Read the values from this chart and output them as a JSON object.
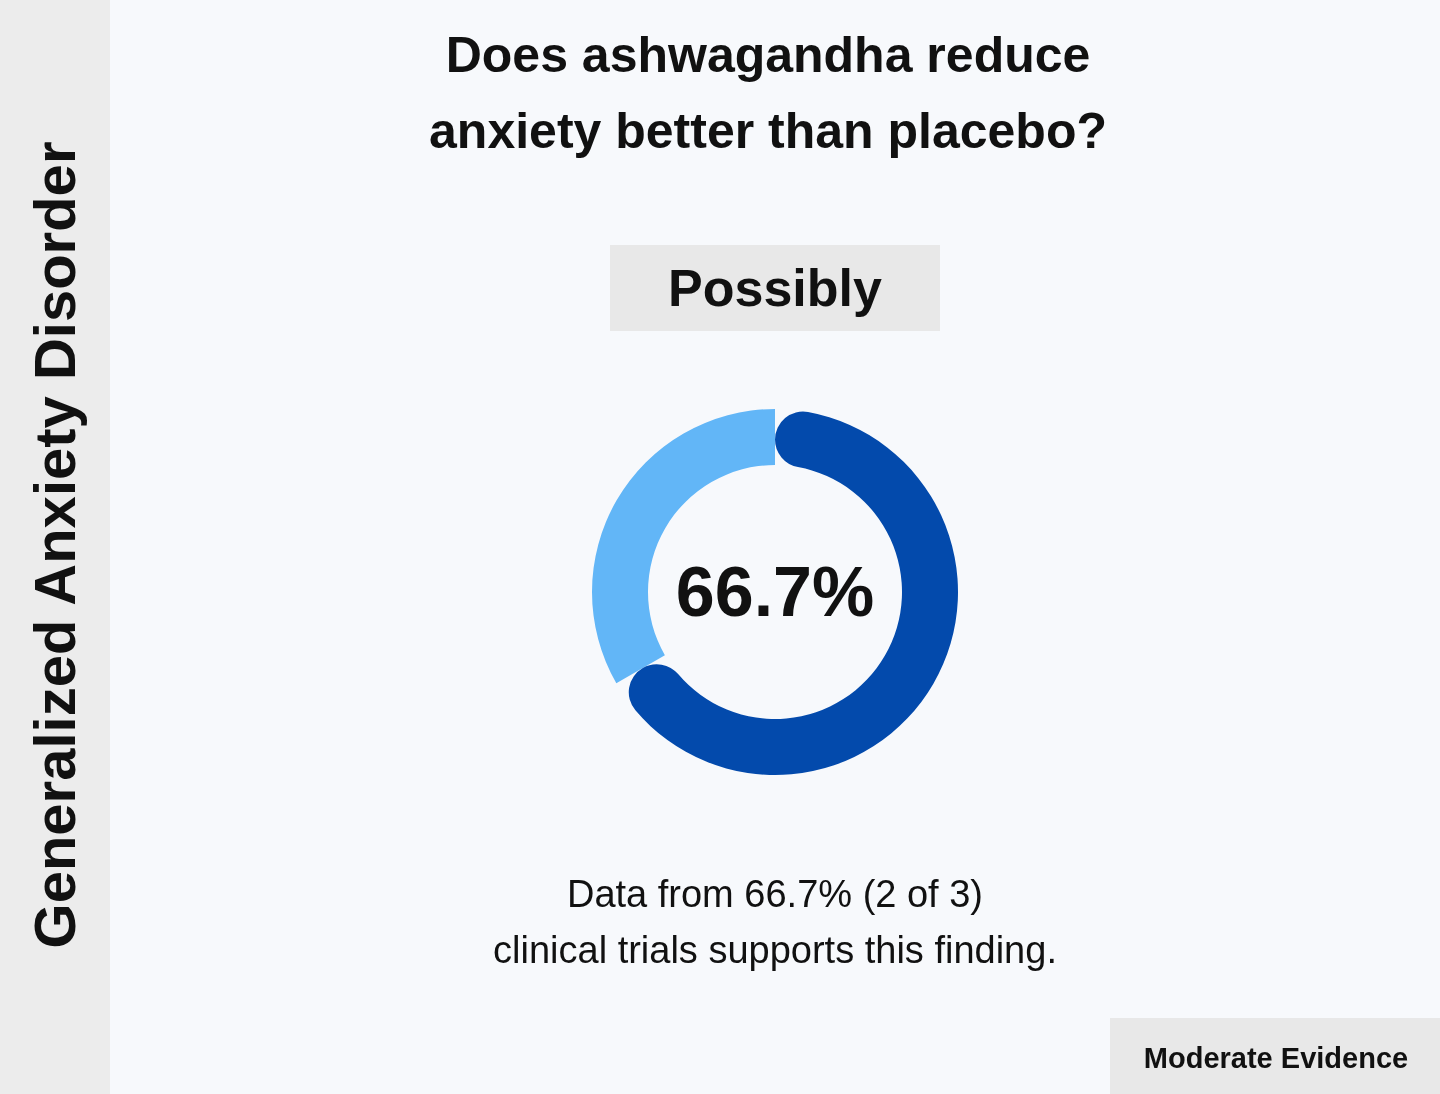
{
  "chart_data": {
    "type": "donut",
    "title": "Does ashwagandha reduce\nanxiety better than placebo?",
    "subtitle": "Possibly",
    "categories": [
      null,
      null
    ],
    "values": [
      66.7,
      33.3
    ],
    "colors": [
      "#034aac",
      "#62b6f7"
    ],
    "value_labels": [
      "66.7%",
      null
    ],
    "annotations": [
      "Generalized Anxiety Disorder",
      "Data from 66.7% (2 of 3)\nclinical trials supports this finding.",
      "Moderate Evidence"
    ]
  }
}
